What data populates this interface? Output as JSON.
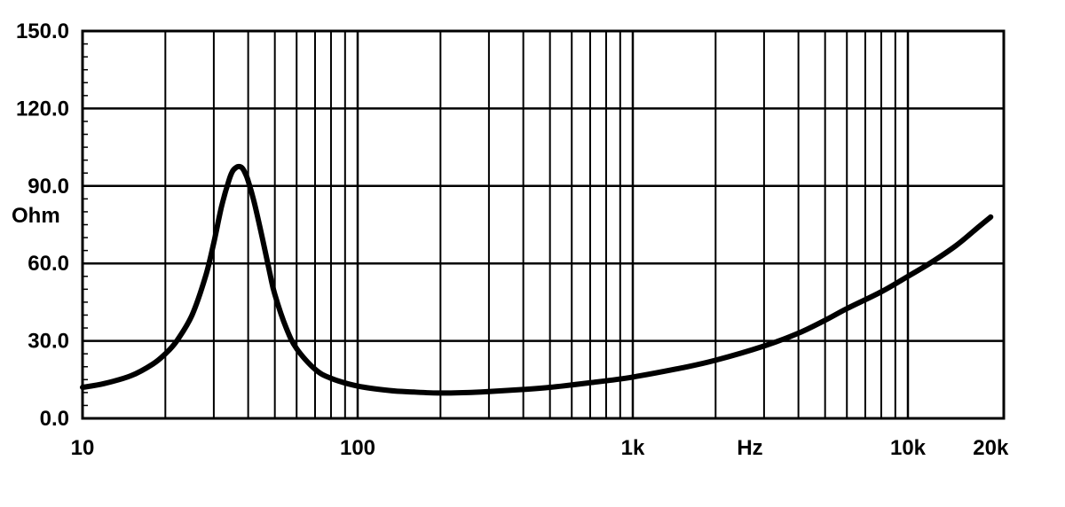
{
  "chart_data": {
    "type": "line",
    "title": "",
    "xlabel": "Hz",
    "ylabel": "Ohm",
    "xscale": "log",
    "xlim": [
      10,
      20000
    ],
    "ylim": [
      0,
      150
    ],
    "grid": true,
    "y_ticks": [
      {
        "value": 0,
        "label": "0.0"
      },
      {
        "value": 30,
        "label": "30.0"
      },
      {
        "value": 60,
        "label": "60.0"
      },
      {
        "value": 90,
        "label": "90.0"
      },
      {
        "value": 120,
        "label": "120.0"
      },
      {
        "value": 150,
        "label": "150.0"
      }
    ],
    "x_ticks": [
      {
        "value": 10,
        "label": "10"
      },
      {
        "value": 100,
        "label": "100"
      },
      {
        "value": 1000,
        "label": "1k"
      },
      {
        "value": 10000,
        "label": "10k"
      },
      {
        "value": 20000,
        "label": "20k"
      }
    ],
    "x_grid": [
      20,
      30,
      40,
      50,
      60,
      70,
      80,
      90,
      200,
      300,
      400,
      500,
      600,
      700,
      800,
      900,
      2000,
      3000,
      4000,
      5000,
      6000,
      7000,
      8000,
      9000
    ],
    "y_grid": [
      30,
      60,
      90,
      120
    ],
    "series": [
      {
        "color": "#000000",
        "x": [
          10,
          12,
          15,
          18,
          20,
          22,
          25,
          28,
          30,
          32,
          34,
          35,
          36,
          37,
          38,
          39,
          40,
          42,
          45,
          48,
          50,
          55,
          60,
          70,
          80,
          100,
          130,
          160,
          200,
          250,
          300,
          400,
          500,
          700,
          1000,
          1500,
          2000,
          3000,
          4000,
          5000,
          6000,
          8000,
          10000,
          12000,
          15000,
          18000,
          20000
        ],
        "y": [
          12,
          13.5,
          16.5,
          21,
          25,
          30,
          40,
          55,
          68,
          82,
          92,
          95.5,
          97,
          97.5,
          97,
          95,
          92,
          84,
          70,
          56,
          48,
          35,
          27,
          19,
          15.5,
          12.5,
          10.8,
          10.2,
          9.8,
          10,
          10.4,
          11.2,
          12,
          13.8,
          16,
          19.5,
          22.5,
          28,
          33,
          38,
          42.5,
          49,
          55,
          60,
          67,
          74,
          78
        ]
      }
    ]
  }
}
